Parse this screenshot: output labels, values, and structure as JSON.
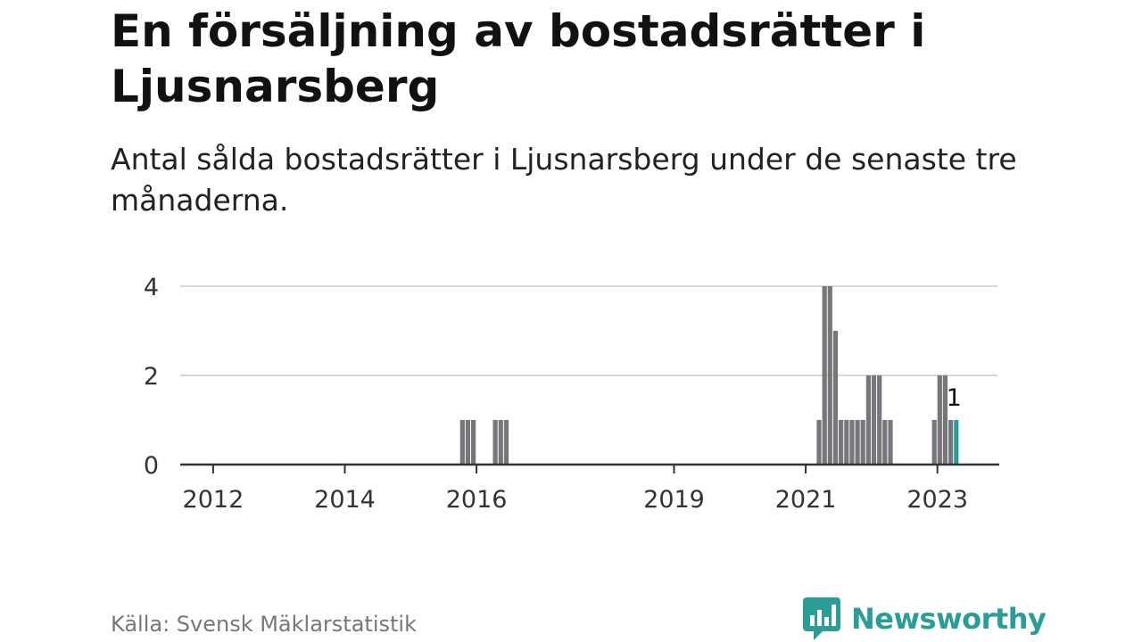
{
  "header": {
    "title": "En försäljning av bostadsrätter i Ljusnarsberg",
    "subtitle": "Antal sålda bostadsrätter i Ljusnarsberg under de senaste tre månaderna."
  },
  "footer": {
    "source": "Källa: Svensk Mäklarstatistik",
    "brand": "Newsworthy",
    "brand_icon": "bar-chart-speech-bubble-icon"
  },
  "colors": {
    "bar": "#76767c",
    "highlight": "#2a9d96",
    "grid": "#d8d8d8",
    "axis": "#333333",
    "brand": "#2a9d96"
  },
  "chart_data": {
    "type": "bar",
    "x_unit": "month",
    "x_start": "2011-07",
    "x_end": "2023-10",
    "x_ticks": [
      "2012",
      "2014",
      "2016",
      "2019",
      "2021",
      "2023"
    ],
    "y_ticks": [
      0,
      2,
      4
    ],
    "ylim": [
      0,
      4
    ],
    "grid": true,
    "series": [
      {
        "points": [
          {
            "month": "2015-10",
            "value": 1
          },
          {
            "month": "2015-11",
            "value": 1
          },
          {
            "month": "2015-12",
            "value": 1
          },
          {
            "month": "2016-04",
            "value": 1
          },
          {
            "month": "2016-05",
            "value": 1
          },
          {
            "month": "2016-06",
            "value": 1
          },
          {
            "month": "2021-03",
            "value": 1
          },
          {
            "month": "2021-04",
            "value": 4
          },
          {
            "month": "2021-05",
            "value": 4
          },
          {
            "month": "2021-06",
            "value": 3
          },
          {
            "month": "2021-07",
            "value": 1
          },
          {
            "month": "2021-08",
            "value": 1
          },
          {
            "month": "2021-09",
            "value": 1
          },
          {
            "month": "2021-10",
            "value": 1
          },
          {
            "month": "2021-11",
            "value": 1
          },
          {
            "month": "2021-12",
            "value": 2
          },
          {
            "month": "2022-01",
            "value": 2
          },
          {
            "month": "2022-02",
            "value": 2
          },
          {
            "month": "2022-03",
            "value": 1
          },
          {
            "month": "2022-04",
            "value": 1
          },
          {
            "month": "2022-12",
            "value": 1
          },
          {
            "month": "2023-01",
            "value": 2
          },
          {
            "month": "2023-02",
            "value": 2
          },
          {
            "month": "2023-03",
            "value": 1
          },
          {
            "month": "2023-04",
            "value": 1,
            "highlight": true,
            "label": "1"
          }
        ]
      }
    ]
  }
}
